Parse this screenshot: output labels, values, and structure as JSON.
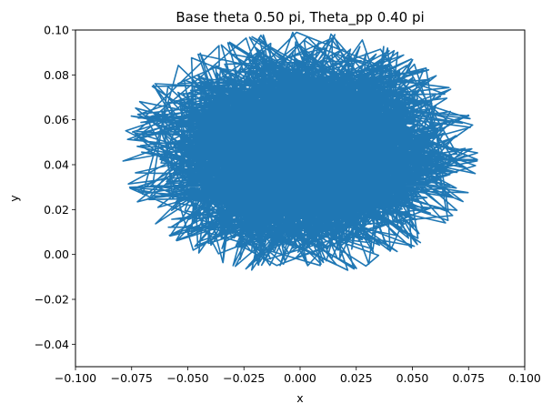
{
  "chart_data": {
    "type": "line",
    "title": "Base theta 0.50 pi, Theta_pp 0.40 pi",
    "xlabel": "x",
    "ylabel": "y",
    "xlim": [
      -0.1,
      0.1
    ],
    "ylim": [
      -0.05,
      0.1
    ],
    "x_ticks": [
      "−0.100",
      "−0.075",
      "−0.050",
      "−0.025",
      "0.000",
      "0.025",
      "0.050",
      "0.075",
      "0.100"
    ],
    "y_ticks": [
      "−0.04",
      "−0.02",
      "0.00",
      "0.02",
      "0.04",
      "0.06",
      "0.08",
      "0.10"
    ],
    "grid": false,
    "series": [
      {
        "color": "#1f77b4",
        "shape": {
          "center": [
            0.0,
            0.045
          ],
          "radius_x": 0.079,
          "radius_top": 0.054,
          "radius_bottom": 0.054,
          "point_count": 2200
        }
      }
    ]
  }
}
